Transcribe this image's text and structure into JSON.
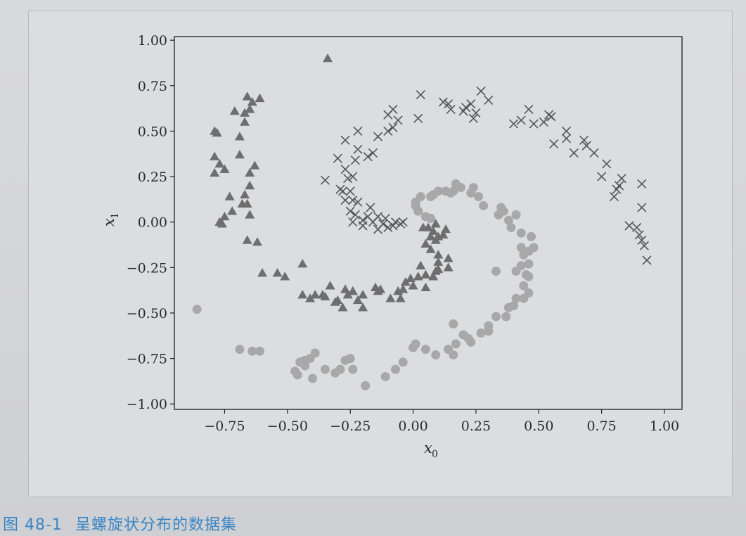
{
  "caption": {
    "number": "图 48-1",
    "text": "呈螺旋状分布的数据集"
  },
  "chart_data": {
    "type": "scatter",
    "xlabel": "x",
    "xlabel_sub": "0",
    "ylabel": "x",
    "ylabel_sub": "1",
    "xlim": [
      -0.95,
      1.07
    ],
    "ylim": [
      -1.03,
      1.02
    ],
    "xticks": [
      "−0.75",
      "−0.50",
      "−0.25",
      "0.00",
      "0.25",
      "0.50",
      "0.75",
      "1.00"
    ],
    "xtick_values": [
      -0.75,
      -0.5,
      -0.25,
      0,
      0.25,
      0.5,
      0.75,
      1.0
    ],
    "yticks": [
      "1.00",
      "0.75",
      "0.50",
      "0.25",
      "0.00",
      "−0.25",
      "−0.50",
      "−0.75",
      "−1.00"
    ],
    "ytick_values": [
      1.0,
      0.75,
      0.5,
      0.25,
      0,
      -0.25,
      -0.5,
      -0.75,
      -1.0
    ],
    "series": [
      {
        "marker": "triangle",
        "color": "#6e6e6e",
        "points": [
          [
            -0.34,
            0.9
          ],
          [
            -0.66,
            0.69
          ],
          [
            -0.61,
            0.68
          ],
          [
            -0.64,
            0.66
          ],
          [
            -0.65,
            0.62
          ],
          [
            -0.71,
            0.61
          ],
          [
            -0.67,
            0.6
          ],
          [
            -0.67,
            0.55
          ],
          [
            -0.78,
            0.49
          ],
          [
            -0.79,
            0.5
          ],
          [
            -0.69,
            0.47
          ],
          [
            -0.79,
            0.36
          ],
          [
            -0.69,
            0.37
          ],
          [
            -0.77,
            0.32
          ],
          [
            -0.75,
            0.29
          ],
          [
            -0.79,
            0.27
          ],
          [
            -0.63,
            0.31
          ],
          [
            -0.65,
            0.27
          ],
          [
            -0.65,
            0.2
          ],
          [
            -0.73,
            0.14
          ],
          [
            -0.68,
            0.1
          ],
          [
            -0.66,
            0.1
          ],
          [
            -0.67,
            0.15
          ],
          [
            -0.72,
            0.06
          ],
          [
            -0.75,
            0.03
          ],
          [
            -0.77,
            0.0
          ],
          [
            -0.76,
            -0.01
          ],
          [
            -0.65,
            0.04
          ],
          [
            -0.66,
            -0.1
          ],
          [
            -0.62,
            -0.11
          ],
          [
            -0.6,
            -0.28
          ],
          [
            -0.54,
            -0.28
          ],
          [
            -0.51,
            -0.3
          ],
          [
            -0.44,
            -0.23
          ],
          [
            -0.44,
            -0.4
          ],
          [
            -0.41,
            -0.42
          ],
          [
            -0.39,
            -0.4
          ],
          [
            -0.36,
            -0.4
          ],
          [
            -0.33,
            -0.35
          ],
          [
            -0.3,
            -0.43
          ],
          [
            -0.27,
            -0.37
          ],
          [
            -0.26,
            -0.4
          ],
          [
            -0.24,
            -0.38
          ],
          [
            -0.22,
            -0.43
          ],
          [
            -0.28,
            -0.47
          ],
          [
            -0.2,
            -0.4
          ],
          [
            -0.15,
            -0.36
          ],
          [
            -0.14,
            -0.38
          ],
          [
            -0.13,
            -0.37
          ],
          [
            -0.09,
            -0.42
          ],
          [
            -0.06,
            -0.38
          ],
          [
            -0.05,
            -0.42
          ],
          [
            -0.04,
            -0.37
          ],
          [
            -0.03,
            -0.33
          ],
          [
            -0.01,
            -0.31
          ],
          [
            0.02,
            -0.3
          ],
          [
            0.05,
            -0.36
          ],
          [
            0.05,
            -0.29
          ],
          [
            0.08,
            -0.3
          ],
          [
            0.09,
            -0.27
          ],
          [
            0.1,
            -0.22
          ],
          [
            0.14,
            -0.2
          ],
          [
            0.14,
            -0.25
          ],
          [
            0.1,
            -0.18
          ],
          [
            0.07,
            -0.15
          ],
          [
            0.05,
            -0.12
          ],
          [
            0.07,
            -0.08
          ],
          [
            0.06,
            -0.03
          ],
          [
            0.04,
            -0.03
          ],
          [
            0.08,
            -0.05
          ],
          [
            0.09,
            -0.01
          ],
          [
            0.1,
            -0.08
          ],
          [
            0.12,
            -0.07
          ],
          [
            0.13,
            -0.04
          ],
          [
            0.09,
            -0.1
          ],
          [
            -0.24,
            -0.38
          ],
          [
            -0.31,
            -0.44
          ],
          [
            0.03,
            -0.24
          ],
          [
            -0.35,
            -0.41
          ],
          [
            -0.2,
            -0.47
          ],
          [
            0.1,
            -0.26
          ],
          [
            0.0,
            -0.35
          ]
        ]
      },
      {
        "marker": "cross",
        "color": "#555555",
        "points": [
          [
            0.03,
            0.7
          ],
          [
            0.12,
            0.66
          ],
          [
            0.14,
            0.65
          ],
          [
            0.15,
            0.62
          ],
          [
            0.2,
            0.61
          ],
          [
            0.21,
            0.63
          ],
          [
            0.23,
            0.65
          ],
          [
            0.25,
            0.6
          ],
          [
            0.27,
            0.72
          ],
          [
            0.3,
            0.67
          ],
          [
            0.24,
            0.57
          ],
          [
            0.02,
            0.57
          ],
          [
            0.4,
            0.54
          ],
          [
            0.43,
            0.56
          ],
          [
            0.46,
            0.62
          ],
          [
            0.48,
            0.54
          ],
          [
            0.52,
            0.55
          ],
          [
            0.54,
            0.59
          ],
          [
            0.55,
            0.58
          ],
          [
            0.56,
            0.43
          ],
          [
            0.61,
            0.5
          ],
          [
            0.61,
            0.46
          ],
          [
            0.64,
            0.38
          ],
          [
            0.68,
            0.45
          ],
          [
            0.69,
            0.42
          ],
          [
            0.72,
            0.38
          ],
          [
            0.77,
            0.32
          ],
          [
            0.75,
            0.25
          ],
          [
            0.83,
            0.24
          ],
          [
            0.82,
            0.2
          ],
          [
            0.81,
            0.18
          ],
          [
            0.8,
            0.14
          ],
          [
            0.91,
            0.21
          ],
          [
            0.91,
            0.08
          ],
          [
            0.86,
            -0.02
          ],
          [
            0.89,
            -0.03
          ],
          [
            0.9,
            -0.07
          ],
          [
            0.91,
            -0.1
          ],
          [
            0.92,
            -0.13
          ],
          [
            0.93,
            -0.21
          ],
          [
            -0.1,
            0.59
          ],
          [
            -0.08,
            0.62
          ],
          [
            -0.06,
            0.56
          ],
          [
            -0.08,
            0.52
          ],
          [
            -0.1,
            0.5
          ],
          [
            -0.14,
            0.47
          ],
          [
            -0.22,
            0.5
          ],
          [
            -0.27,
            0.45
          ],
          [
            -0.16,
            0.38
          ],
          [
            -0.18,
            0.36
          ],
          [
            -0.22,
            0.4
          ],
          [
            -0.23,
            0.34
          ],
          [
            -0.3,
            0.35
          ],
          [
            -0.27,
            0.29
          ],
          [
            -0.24,
            0.25
          ],
          [
            -0.26,
            0.24
          ],
          [
            -0.35,
            0.23
          ],
          [
            -0.29,
            0.18
          ],
          [
            -0.28,
            0.17
          ],
          [
            -0.25,
            0.17
          ],
          [
            -0.27,
            0.12
          ],
          [
            -0.24,
            0.12
          ],
          [
            -0.22,
            0.11
          ],
          [
            -0.25,
            0.06
          ],
          [
            -0.23,
            0.04
          ],
          [
            -0.24,
            0.0
          ],
          [
            -0.2,
            0.01
          ],
          [
            -0.18,
            0.03
          ],
          [
            -0.16,
            0.0
          ],
          [
            -0.14,
            0.03
          ],
          [
            -0.12,
            -0.01
          ],
          [
            -0.1,
            -0.03
          ],
          [
            -0.08,
            -0.02
          ],
          [
            -0.07,
            0.0
          ],
          [
            -0.05,
            -0.01
          ],
          [
            -0.04,
            0.0
          ],
          [
            -0.2,
            -0.02
          ],
          [
            -0.14,
            -0.04
          ],
          [
            -0.11,
            0.02
          ],
          [
            -0.17,
            0.08
          ]
        ]
      },
      {
        "marker": "circle",
        "color": "#a8a8a8",
        "points": [
          [
            -0.86,
            -0.48
          ],
          [
            -0.69,
            -0.7
          ],
          [
            -0.64,
            -0.71
          ],
          [
            -0.61,
            -0.71
          ],
          [
            -0.47,
            -0.82
          ],
          [
            -0.45,
            -0.77
          ],
          [
            -0.43,
            -0.76
          ],
          [
            -0.41,
            -0.75
          ],
          [
            -0.39,
            -0.72
          ],
          [
            -0.43,
            -0.79
          ],
          [
            -0.46,
            -0.84
          ],
          [
            -0.4,
            -0.86
          ],
          [
            -0.35,
            -0.81
          ],
          [
            -0.31,
            -0.83
          ],
          [
            -0.29,
            -0.81
          ],
          [
            -0.27,
            -0.76
          ],
          [
            -0.25,
            -0.75
          ],
          [
            -0.24,
            -0.81
          ],
          [
            -0.19,
            -0.9
          ],
          [
            -0.11,
            -0.85
          ],
          [
            -0.07,
            -0.81
          ],
          [
            -0.04,
            -0.77
          ],
          [
            0.0,
            -0.69
          ],
          [
            0.01,
            -0.67
          ],
          [
            0.05,
            -0.7
          ],
          [
            0.09,
            -0.73
          ],
          [
            0.14,
            -0.7
          ],
          [
            0.16,
            -0.73
          ],
          [
            0.17,
            -0.67
          ],
          [
            0.2,
            -0.62
          ],
          [
            0.22,
            -0.64
          ],
          [
            0.23,
            -0.66
          ],
          [
            0.27,
            -0.61
          ],
          [
            0.3,
            -0.57
          ],
          [
            0.33,
            -0.52
          ],
          [
            0.37,
            -0.52
          ],
          [
            0.4,
            -0.46
          ],
          [
            0.41,
            -0.42
          ],
          [
            0.44,
            -0.42
          ],
          [
            0.46,
            -0.39
          ],
          [
            0.44,
            -0.35
          ],
          [
            0.45,
            -0.29
          ],
          [
            0.46,
            -0.23
          ],
          [
            0.44,
            -0.18
          ],
          [
            0.43,
            -0.14
          ],
          [
            0.46,
            -0.16
          ],
          [
            0.48,
            -0.14
          ],
          [
            0.47,
            -0.08
          ],
          [
            0.43,
            -0.06
          ],
          [
            0.39,
            -0.03
          ],
          [
            0.38,
            0.01
          ],
          [
            0.41,
            0.04
          ],
          [
            0.36,
            0.06
          ],
          [
            0.34,
            0.04
          ],
          [
            0.35,
            0.08
          ],
          [
            0.28,
            0.09
          ],
          [
            0.26,
            0.14
          ],
          [
            0.23,
            0.16
          ],
          [
            0.24,
            0.19
          ],
          [
            0.19,
            0.19
          ],
          [
            0.17,
            0.21
          ],
          [
            0.16,
            0.17
          ],
          [
            0.15,
            0.16
          ],
          [
            0.13,
            0.17
          ],
          [
            0.1,
            0.17
          ],
          [
            0.08,
            0.15
          ],
          [
            0.07,
            0.14
          ],
          [
            0.03,
            0.14
          ],
          [
            0.01,
            0.11
          ],
          [
            0.01,
            0.09
          ],
          [
            0.02,
            0.06
          ],
          [
            0.05,
            0.03
          ],
          [
            0.07,
            0.02
          ],
          [
            0.16,
            -0.56
          ],
          [
            0.33,
            -0.27
          ],
          [
            0.41,
            -0.27
          ],
          [
            0.43,
            -0.24
          ],
          [
            0.38,
            -0.47
          ],
          [
            0.3,
            -0.6
          ],
          [
            0.46,
            -0.3
          ]
        ]
      }
    ]
  }
}
